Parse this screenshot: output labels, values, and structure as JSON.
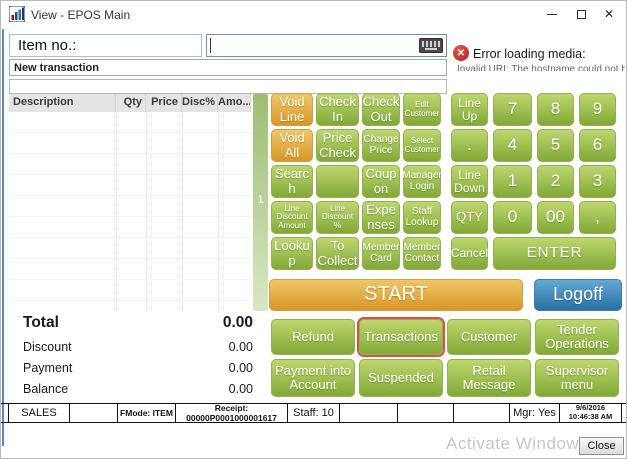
{
  "window": {
    "title": "View - EPOS Main",
    "controls": {
      "minimize": "minimize",
      "maximize": "maximize",
      "close": "close"
    }
  },
  "item_entry": {
    "label": "Item no.:",
    "value": "",
    "status_line": "New transaction",
    "message_line": ""
  },
  "error": {
    "title": "Error loading media:",
    "detail": "Invalid URI: The hostname could not be parsed."
  },
  "table": {
    "columns": [
      "Description",
      "Qty",
      "Price",
      "Disc%",
      "Amo..."
    ],
    "rows": []
  },
  "page_indicator": "1",
  "function_grid": {
    "rows": [
      [
        {
          "label": "Void Line",
          "color": "orange",
          "size": "md"
        },
        {
          "label": "Check In",
          "size": "md"
        },
        {
          "label": "Check Out",
          "size": "md"
        },
        {
          "label": "Edit Customer",
          "size": "xs"
        }
      ],
      [
        {
          "label": "Void All",
          "color": "orange",
          "size": "md"
        },
        {
          "label": "Price Check",
          "size": "md"
        },
        {
          "label": "Change Price",
          "size": "sm"
        },
        {
          "label": "Select Customer",
          "size": "xs"
        }
      ],
      [
        {
          "label": "Search",
          "size": "md",
          "wrap": true
        },
        {
          "label": "",
          "size": "md"
        },
        {
          "label": "Coupon",
          "size": "md",
          "wrap": true
        },
        {
          "label": "Manager Login",
          "size": "sm"
        }
      ],
      [
        {
          "label": "Line Discount Amount",
          "size": "xs"
        },
        {
          "label": "Line Discount %",
          "size": "xs"
        },
        {
          "label": "Expenses",
          "size": "md",
          "wrap": true
        },
        {
          "label": "Staff Lookup",
          "size": "sm"
        }
      ],
      [
        {
          "label": "Lookup",
          "size": "md",
          "wrap": true
        },
        {
          "label": "To Collect",
          "size": "md"
        },
        {
          "label": "Member Card",
          "size": "sm"
        },
        {
          "label": "Member Contact",
          "size": "sm"
        }
      ]
    ]
  },
  "keypad": {
    "keys": [
      {
        "label": "Line Up",
        "size": "fn"
      },
      {
        "label": "7",
        "size": "num"
      },
      {
        "label": "8",
        "size": "num"
      },
      {
        "label": "9",
        "size": "num"
      },
      {
        "label": ".",
        "size": "num"
      },
      {
        "label": "4",
        "size": "num"
      },
      {
        "label": "5",
        "size": "num"
      },
      {
        "label": "6",
        "size": "num"
      },
      {
        "label": "Line Down",
        "size": "fn"
      },
      {
        "label": "1",
        "size": "num"
      },
      {
        "label": "2",
        "size": "num"
      },
      {
        "label": "3",
        "size": "num"
      },
      {
        "label": "QTY",
        "size": "qty"
      },
      {
        "label": "0",
        "size": "num"
      },
      {
        "label": "00",
        "size": "num"
      },
      {
        "label": ",",
        "size": "num"
      },
      {
        "label": "Cancel",
        "size": "fn"
      },
      {
        "label": "ENTER",
        "size": "enter",
        "span": 3
      }
    ]
  },
  "start_button": "START",
  "logoff_button": "Logoff",
  "action_grid": {
    "rows": [
      [
        {
          "label": "Refund"
        },
        {
          "label": "Transactions",
          "highlighted": true
        },
        {
          "label": "Customer"
        },
        {
          "label": "Tender Operations"
        }
      ],
      [
        {
          "label": "Payment into Account"
        },
        {
          "label": "Suspended"
        },
        {
          "label": "Retail Message"
        },
        {
          "label": "Supervisor menu"
        }
      ]
    ]
  },
  "totals": [
    {
      "label": "Total",
      "value": "0.00",
      "emphasis": true
    },
    {
      "label": "Discount",
      "value": "0.00"
    },
    {
      "label": "Payment",
      "value": "0.00"
    },
    {
      "label": "Balance",
      "value": "0.00"
    }
  ],
  "status_bar": {
    "cells": [
      "SALES",
      "",
      "FMode: ITEM",
      "Receipt: 00000P0001000001617",
      "Staff: 10",
      "",
      "",
      "",
      "Mgr: Yes",
      "9/6/2016\n10:46:38 AM"
    ]
  },
  "watermark": "Activate Windows",
  "close_button": "Close",
  "colors": {
    "button_green": "#8fb13f",
    "button_orange": "#dd9a25",
    "logoff_blue": "#2672a8",
    "highlight_red": "#e14b4b",
    "error_red": "#b71b1b"
  }
}
